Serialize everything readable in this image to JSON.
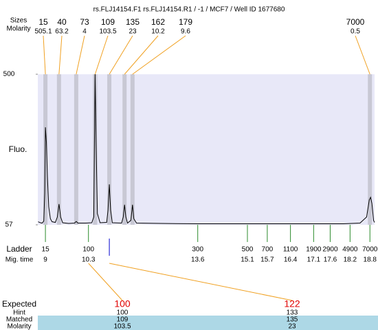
{
  "chart_data": {
    "type": "electropherogram",
    "title": "rs.FLJ14154.F1  rs.FLJ14154.R1 / -1 / MCF7 / Well ID 1677680",
    "peak_labels": [
      "Sizes",
      "Molarity"
    ],
    "peaks": {
      "x": [
        9.0,
        9.41,
        9.93,
        10.5,
        10.93,
        11.39,
        11.63,
        18.8
      ],
      "sizes": [
        15,
        40,
        73,
        109,
        135,
        162,
        179,
        7000
      ],
      "molarity": [
        505.1,
        63.2,
        4,
        103.5,
        23,
        10.2,
        9.6,
        0.5
      ]
    },
    "ylabel": "Fluo.",
    "ylim": [
      57,
      500
    ],
    "yticks": [
      57,
      500
    ],
    "xlim": [
      8.77,
      18.94
    ],
    "trace": {
      "x": [
        8.78,
        8.85,
        8.9,
        8.95,
        8.98,
        9.0,
        9.03,
        9.06,
        9.1,
        9.15,
        9.2,
        9.3,
        9.36,
        9.41,
        9.46,
        9.52,
        9.7,
        9.88,
        9.93,
        9.98,
        10.2,
        10.4,
        10.46,
        10.5,
        10.53,
        10.57,
        10.65,
        10.85,
        10.89,
        10.93,
        10.97,
        11.02,
        11.3,
        11.35,
        11.39,
        11.43,
        11.48,
        11.58,
        11.63,
        11.67,
        11.75,
        12.5,
        13.6,
        15.0,
        16.0,
        17.0,
        18.0,
        18.5,
        18.7,
        18.78,
        18.82,
        18.86,
        18.91,
        18.94
      ],
      "y": [
        66,
        63,
        62,
        68,
        150,
        344,
        300,
        200,
        110,
        75,
        66,
        64,
        80,
        118,
        80,
        63,
        61,
        62,
        67,
        62,
        62,
        63,
        80,
        500,
        300,
        90,
        63,
        64,
        100,
        176,
        100,
        63,
        62,
        80,
        116,
        80,
        62,
        70,
        116,
        75,
        62,
        61,
        60,
        60,
        60,
        60,
        60,
        62,
        80,
        130,
        138,
        120,
        70,
        64
      ]
    },
    "ladder": {
      "label": "Ladder",
      "time_label": "Mig. time",
      "sizes": [
        15,
        100,
        300,
        500,
        700,
        1100,
        1900,
        2900,
        4900,
        7000
      ],
      "times": [
        9,
        10.3,
        13.6,
        15.1,
        15.7,
        16.4,
        17.1,
        17.6,
        18.2,
        18.8
      ]
    },
    "results": {
      "labels": [
        "Expected",
        "Hint",
        "Matched",
        "Molarity"
      ],
      "rows": [
        [
          100,
          122
        ],
        [
          100,
          133
        ],
        [
          109,
          135
        ],
        [
          103.5,
          23
        ]
      ]
    }
  }
}
